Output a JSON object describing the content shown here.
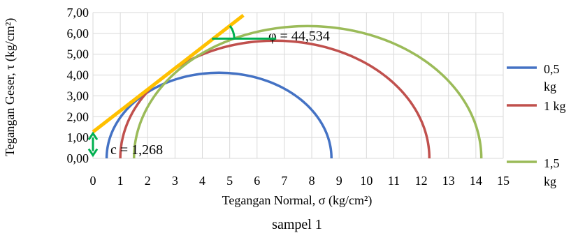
{
  "chart_data": {
    "type": "line",
    "title": "",
    "caption": "sampel 1",
    "xlabel": "Tegangan Normal, σ (kg/cm²)",
    "ylabel": "Tegangan Geser, τ (kg/cm²)",
    "xlim": [
      0,
      15
    ],
    "ylim": [
      0,
      7
    ],
    "x_ticks": [
      "0",
      "1",
      "2",
      "3",
      "4",
      "5",
      "6",
      "7",
      "8",
      "9",
      "10",
      "11",
      "12",
      "13",
      "14",
      "15"
    ],
    "y_ticks": [
      "0,00",
      "1,00",
      "2,00",
      "3,00",
      "4,00",
      "5,00",
      "6,00",
      "7,00"
    ],
    "grid": true,
    "legend_position": "right",
    "series": [
      {
        "name": "0,5 kg",
        "type": "mohr-circle",
        "sigma3": 0.5,
        "sigma1": 8.72,
        "color": "#4472C4"
      },
      {
        "name": "1 kg",
        "type": "mohr-circle",
        "sigma3": 1.0,
        "sigma1": 12.3,
        "color": "#C0504D"
      },
      {
        "name": "1,5 kg",
        "type": "mohr-circle",
        "sigma3": 1.5,
        "sigma1": 14.2,
        "color": "#9BBB59"
      }
    ],
    "envelope": {
      "color": "#FFC000",
      "x": [
        0,
        5.5
      ],
      "y": [
        1.268,
        6.87
      ]
    },
    "annotations": {
      "phi_label": "φ = 44,534",
      "c_label": "c = 1,268",
      "marker_color": "#00B050",
      "phi_level_y": 5.75,
      "phi_level_x": [
        4.35,
        6.7
      ],
      "c_arrow_x": 0,
      "c_arrow_y": [
        0.15,
        1.2
      ]
    }
  }
}
